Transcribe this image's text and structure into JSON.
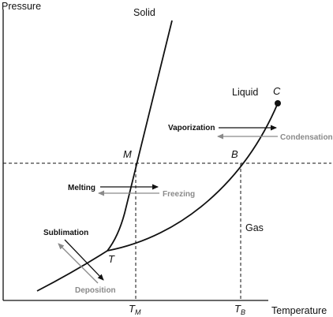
{
  "axes": {
    "y_label": "Pressure",
    "x_label": "Temperature"
  },
  "regions": {
    "solid": "Solid",
    "liquid": "Liquid",
    "gas": "Gas"
  },
  "points": {
    "critical": "C",
    "triple": "T",
    "melting": "M",
    "boiling": "B"
  },
  "ticks": {
    "tm_main": "T",
    "tm_sub": "M",
    "tb_main": "T",
    "tb_sub": "B"
  },
  "transitions": {
    "vaporization": "Vaporization",
    "condensation": "Condensation",
    "melting": "Melting",
    "freezing": "Freezing",
    "sublimation": "Sublimation",
    "deposition": "Deposition"
  },
  "colors": {
    "forward_arrow": "#111111",
    "reverse_arrow": "#8a8a8a",
    "curve": "#111111"
  }
}
